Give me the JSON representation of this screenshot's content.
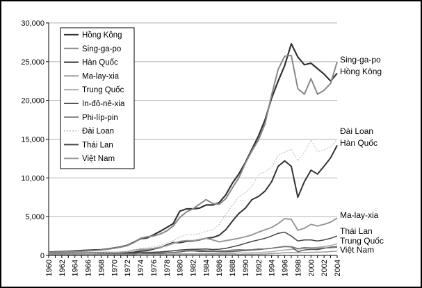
{
  "chart_data": {
    "type": "line",
    "x": [
      1960,
      1961,
      1962,
      1963,
      1964,
      1965,
      1966,
      1967,
      1968,
      1969,
      1970,
      1971,
      1972,
      1973,
      1974,
      1975,
      1976,
      1977,
      1978,
      1979,
      1980,
      1981,
      1982,
      1983,
      1984,
      1985,
      1986,
      1987,
      1988,
      1989,
      1990,
      1991,
      1992,
      1993,
      1994,
      1995,
      1996,
      1997,
      1998,
      1999,
      2000,
      2001,
      2002,
      2003,
      2004
    ],
    "xticks": [
      1960,
      1962,
      1964,
      1966,
      1968,
      1970,
      1972,
      1974,
      1976,
      1978,
      1980,
      1982,
      1984,
      1986,
      1988,
      1990,
      1992,
      1994,
      1996,
      1998,
      2000,
      2002,
      2004
    ],
    "ylim": [
      0,
      30000
    ],
    "yticks": [
      0,
      5000,
      10000,
      15000,
      20000,
      25000,
      30000
    ],
    "ytick_labels": [
      "0",
      "5,000",
      "10,000",
      "15,000",
      "20,000",
      "25,000",
      "30,000"
    ],
    "grid": true,
    "legend_position": "top-left",
    "colors": {
      "axis": "#000000",
      "grid": "#b0b0b0",
      "series_dark": "#333333",
      "series_mid": "#777777",
      "series_light": "#c8c8c8"
    },
    "series": [
      {
        "name": "Hồng Kông",
        "color": "#333333",
        "width": 2.2,
        "dash": "",
        "values": [
          430,
          460,
          480,
          520,
          570,
          630,
          660,
          700,
          730,
          830,
          960,
          1100,
          1300,
          1700,
          2150,
          2250,
          2650,
          3100,
          3600,
          4100,
          5700,
          6000,
          6000,
          6100,
          6500,
          6500,
          6800,
          7800,
          9300,
          10500,
          12000,
          13700,
          15400,
          17500,
          20300,
          22500,
          24500,
          27300,
          25600,
          24600,
          24800,
          24100,
          23400,
          22500,
          23500
        ]
      },
      {
        "name": "Sing-ga-po",
        "color": "#888888",
        "width": 2.0,
        "dash": "",
        "values": [
          400,
          420,
          440,
          470,
          500,
          540,
          580,
          630,
          700,
          800,
          920,
          1070,
          1260,
          1650,
          2200,
          2400,
          2500,
          2750,
          3150,
          3800,
          4900,
          5600,
          6000,
          6600,
          7200,
          6700,
          6600,
          7300,
          8700,
          10000,
          11900,
          13500,
          14900,
          17000,
          20700,
          24000,
          25700,
          25800,
          21500,
          20800,
          22800,
          20800,
          21300,
          22200,
          25000
        ]
      },
      {
        "name": "Hàn Quốc",
        "color": "#333333",
        "width": 2.0,
        "dash": "",
        "values": [
          155,
          100,
          100,
          110,
          120,
          110,
          130,
          150,
          180,
          210,
          260,
          290,
          320,
          400,
          550,
          600,
          820,
          1000,
          1350,
          1650,
          1650,
          1800,
          1850,
          2000,
          2200,
          2300,
          2600,
          3300,
          4400,
          5400,
          6100,
          7200,
          7600,
          8300,
          9500,
          11500,
          12200,
          11500,
          7500,
          9500,
          11000,
          10500,
          11500,
          12600,
          14200
        ]
      },
      {
        "name": "Ma-lay-xia",
        "color": "#999999",
        "width": 2.0,
        "dash": "",
        "values": [
          300,
          280,
          290,
          310,
          330,
          340,
          360,
          370,
          380,
          400,
          380,
          420,
          480,
          680,
          790,
          780,
          900,
          1050,
          1250,
          1550,
          1800,
          1900,
          1900,
          2050,
          2200,
          2000,
          1750,
          1900,
          2050,
          2200,
          2400,
          2650,
          3000,
          3300,
          3600,
          4100,
          4750,
          4650,
          3250,
          3500,
          4000,
          3800,
          4000,
          4300,
          4800
        ]
      },
      {
        "name": "Trung Quốc",
        "color": "#aaaaaa",
        "width": 1.5,
        "dash": "",
        "values": [
          90,
          75,
          70,
          73,
          85,
          98,
          104,
          96,
          91,
          100,
          112,
          118,
          131,
          157,
          160,
          178,
          165,
          185,
          156,
          183,
          193,
          197,
          203,
          225,
          251,
          294,
          281,
          252,
          283,
          311,
          314,
          330,
          363,
          420,
          470,
          604,
          700,
          780,
          820,
          865,
          950,
          1040,
          1130,
          1270,
          1490
        ]
      },
      {
        "name": "In-đô-nê-xia",
        "color": "#555555",
        "width": 1.5,
        "dash": "",
        "values": [
          60,
          65,
          70,
          75,
          80,
          60,
          55,
          60,
          65,
          70,
          80,
          85,
          90,
          110,
          180,
          220,
          250,
          280,
          320,
          370,
          450,
          560,
          580,
          500,
          520,
          530,
          480,
          460,
          500,
          560,
          630,
          680,
          730,
          840,
          920,
          1030,
          1130,
          1100,
          480,
          700,
          790,
          750,
          900,
          1070,
          1150
        ]
      },
      {
        "name": "Phi-líp-pin",
        "color": "#777777",
        "width": 1.5,
        "dash": "",
        "values": [
          250,
          250,
          260,
          270,
          290,
          300,
          320,
          330,
          340,
          350,
          230,
          240,
          250,
          290,
          370,
          390,
          410,
          450,
          510,
          590,
          670,
          730,
          760,
          670,
          600,
          580,
          570,
          610,
          690,
          740,
          710,
          730,
          820,
          830,
          930,
          1060,
          1160,
          1130,
          890,
          1010,
          980,
          920,
          970,
          980,
          1050
        ]
      },
      {
        "name": "Đài Loan",
        "color": "#c8c8c8",
        "width": 1.3,
        "dash": "2,2",
        "values": [
          150,
          160,
          170,
          185,
          210,
          220,
          240,
          260,
          290,
          330,
          390,
          440,
          520,
          680,
          900,
          960,
          1130,
          1300,
          1580,
          1920,
          2350,
          2700,
          2650,
          2800,
          3100,
          3300,
          3950,
          5300,
          6400,
          7600,
          8100,
          8900,
          10400,
          10800,
          11400,
          12900,
          13300,
          13700,
          12200,
          13300,
          14900,
          13400,
          13600,
          14000,
          15000
        ]
      },
      {
        "name": "Thái Lan",
        "color": "#444444",
        "width": 1.5,
        "dash": "",
        "values": [
          100,
          105,
          110,
          115,
          125,
          135,
          150,
          165,
          180,
          190,
          200,
          210,
          220,
          270,
          330,
          350,
          390,
          440,
          510,
          590,
          700,
          750,
          780,
          810,
          830,
          760,
          800,
          900,
          1100,
          1300,
          1550,
          1800,
          2000,
          2200,
          2500,
          2850,
          3000,
          2500,
          1850,
          2000,
          2000,
          1850,
          2000,
          2200,
          2500
        ]
      },
      {
        "name": "Việt Nam",
        "color": "#9a9a9a",
        "width": 1.5,
        "dash": "",
        "values": [
          150,
          150,
          150,
          150,
          150,
          150,
          150,
          150,
          150,
          150,
          150,
          150,
          150,
          150,
          150,
          150,
          150,
          150,
          150,
          150,
          150,
          150,
          150,
          150,
          150,
          150,
          150,
          150,
          180,
          100,
          130,
          140,
          145,
          180,
          220,
          280,
          340,
          360,
          360,
          370,
          400,
          410,
          440,
          490,
          550
        ]
      }
    ],
    "end_labels": [
      {
        "text": "Sing-ga-po",
        "series": "Sing-ga-po"
      },
      {
        "text": "Hồng Kông",
        "series": "Hồng Kông"
      },
      {
        "text": "Đài Loan",
        "series": "Đài Loan"
      },
      {
        "text": "Hàn Quốc",
        "series": "Hàn Quốc"
      },
      {
        "text": "Ma-lay-xia",
        "series": "Ma-lay-xia"
      },
      {
        "text": "Thái Lan",
        "series": "Thái Lan"
      },
      {
        "text": "Trung Quốc",
        "series": "Trung Quốc"
      },
      {
        "text": "Việt Nam",
        "series": "Việt Nam"
      }
    ]
  }
}
